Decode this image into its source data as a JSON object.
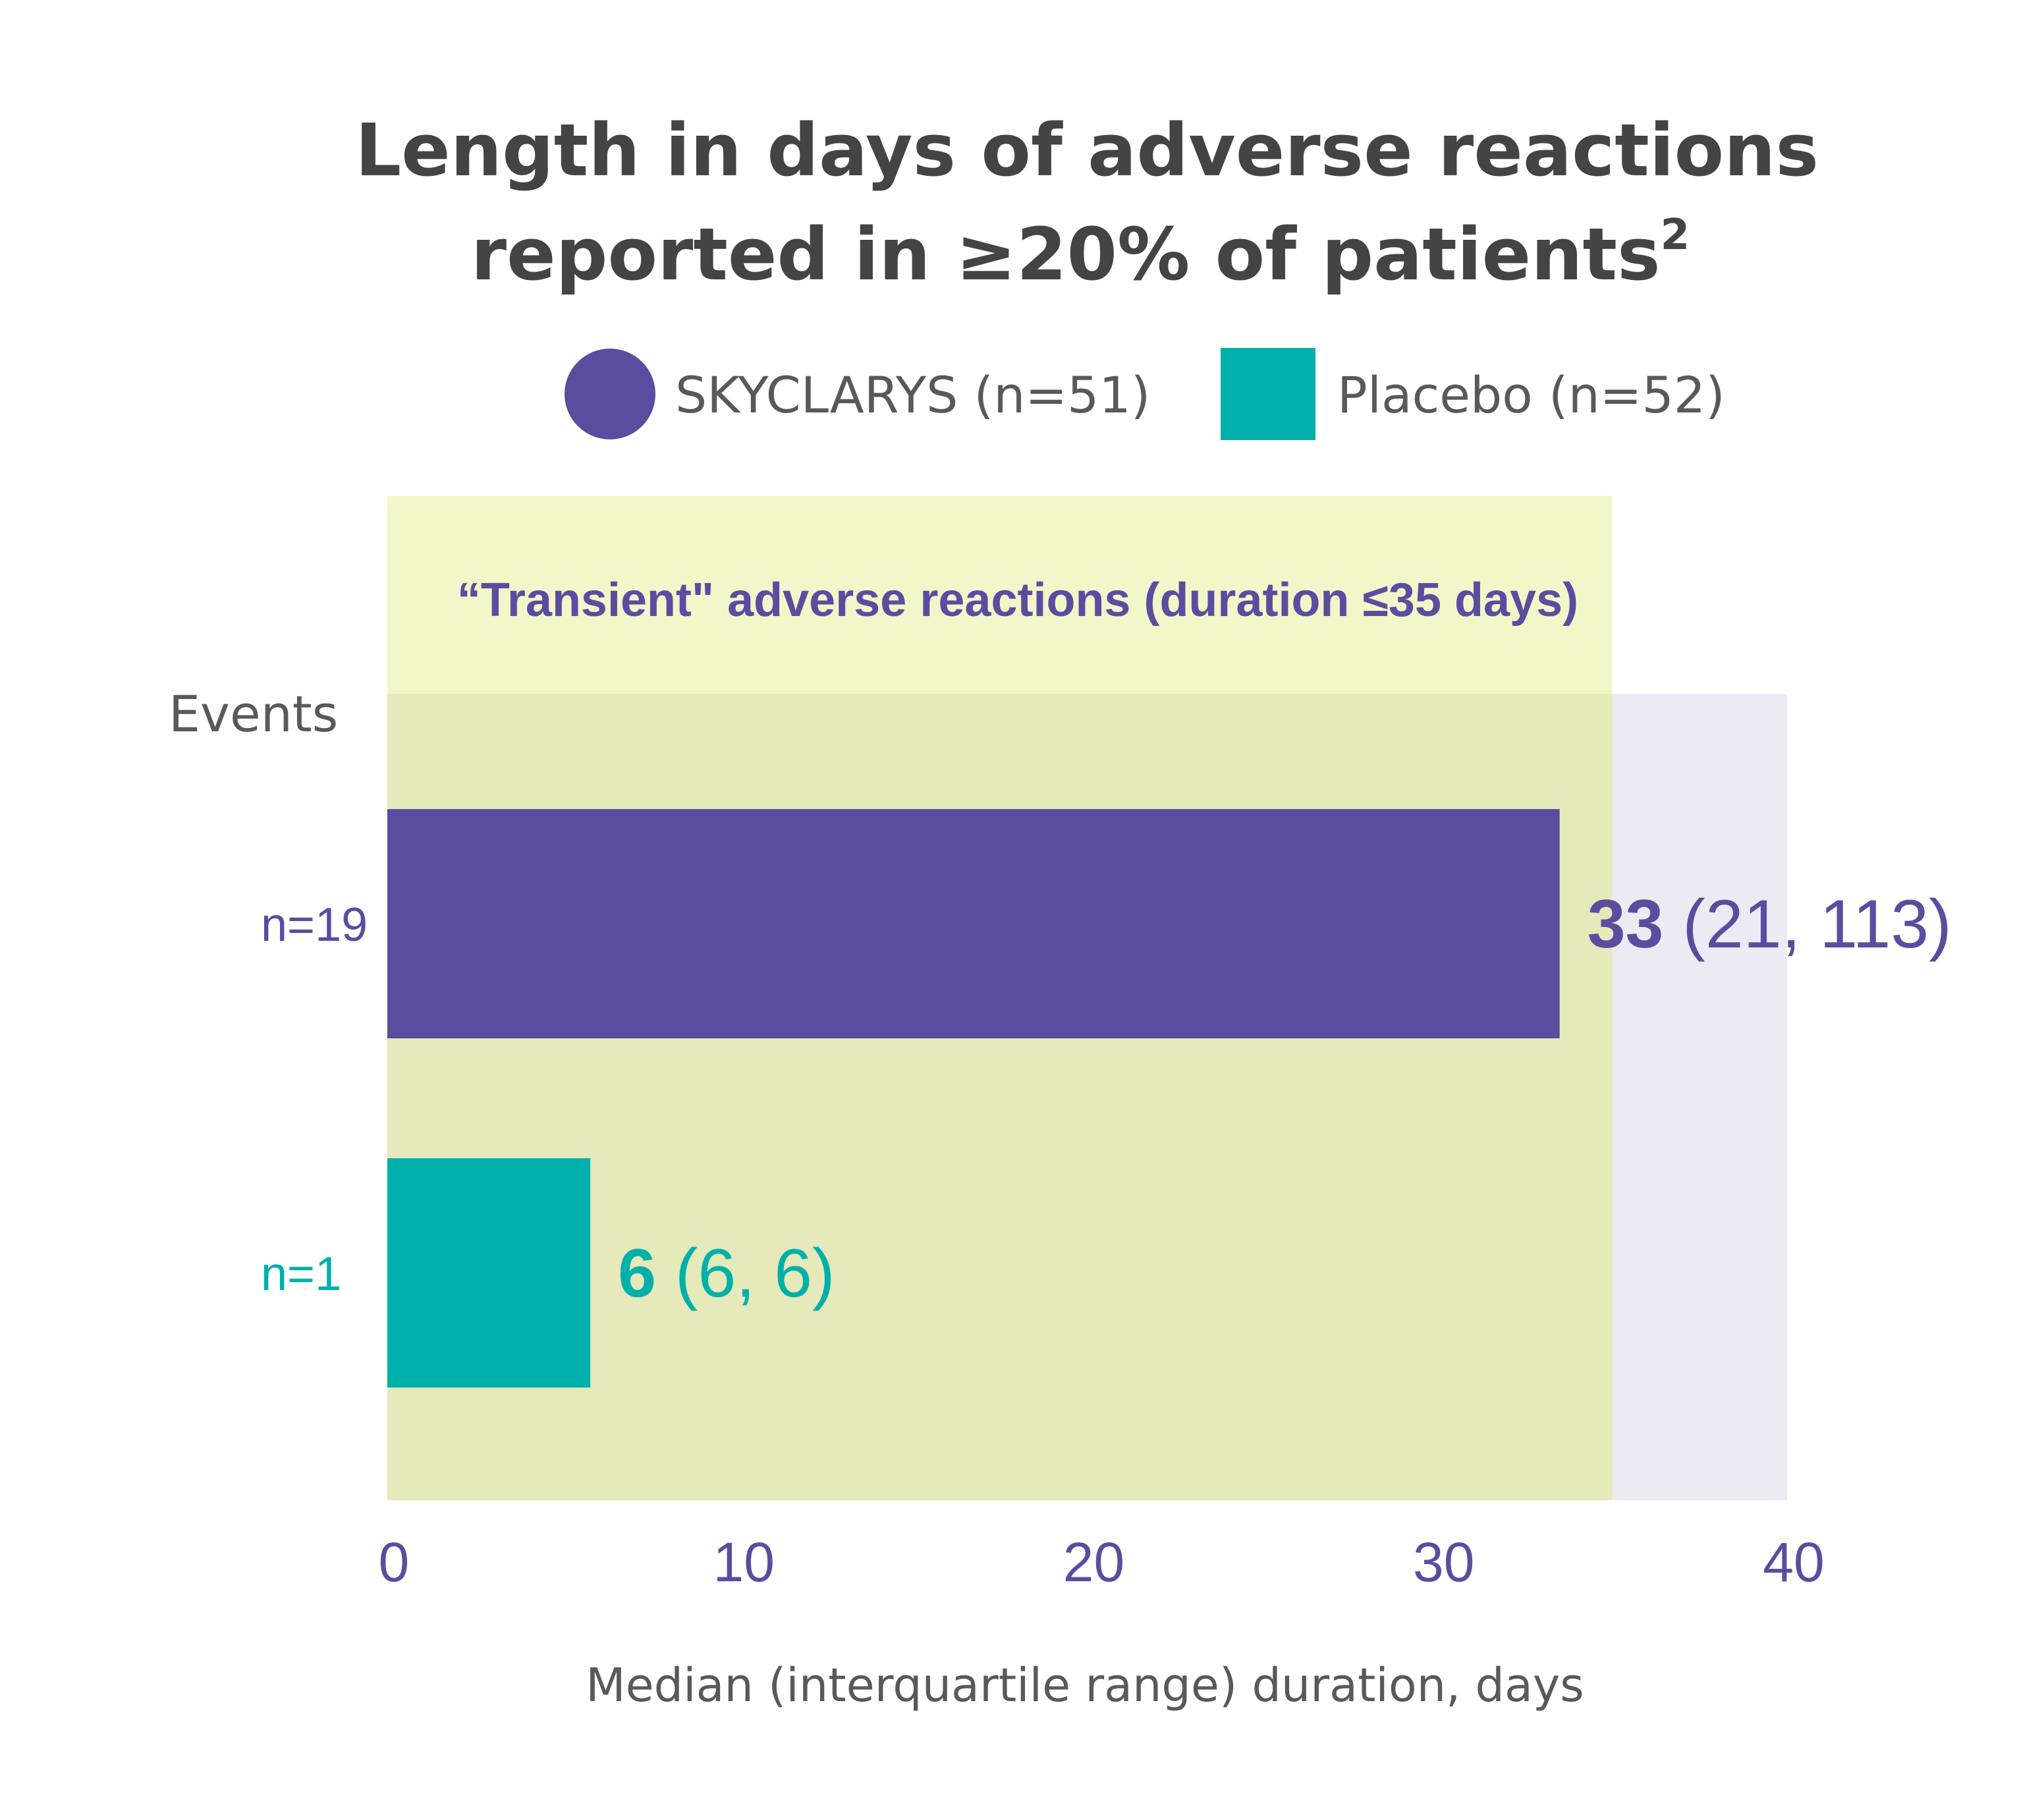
{
  "chart_data": {
    "type": "bar",
    "orientation": "horizontal",
    "title": {
      "line1": "Length in days of adverse reactions",
      "line2": "reported in ≥20% of patients",
      "superscript": "2"
    },
    "legend": {
      "placement": "top",
      "items": [
        {
          "label": "SKYCLARYS (n=51)",
          "marker": "circle",
          "color": "#5a4da0"
        },
        {
          "label": "Placebo (n=52)",
          "marker": "square",
          "color": "#00b0aa"
        }
      ]
    },
    "events_label": "Events",
    "region": {
      "label": "“Transient\" adverse reactions (duration ≤35 days)",
      "xmin": 0,
      "xmax": 35,
      "color": "#f3f6c9"
    },
    "plot_background_color": "#ecebf4",
    "xlabel": "Median (interquartile range) duration, days",
    "xlim": [
      0,
      40
    ],
    "xticks": [
      0,
      10,
      20,
      30,
      40
    ],
    "bars": [
      {
        "category": "n=19",
        "value": 33.5,
        "median_label": "33",
        "iqr_label": "(21, 113)",
        "color": "#5a4da0"
      },
      {
        "category": "n=1",
        "value": 5.8,
        "median_label": "6",
        "iqr_label": "(6, 6)",
        "color": "#00b0aa"
      }
    ],
    "tick_color": "#5a4da0"
  }
}
